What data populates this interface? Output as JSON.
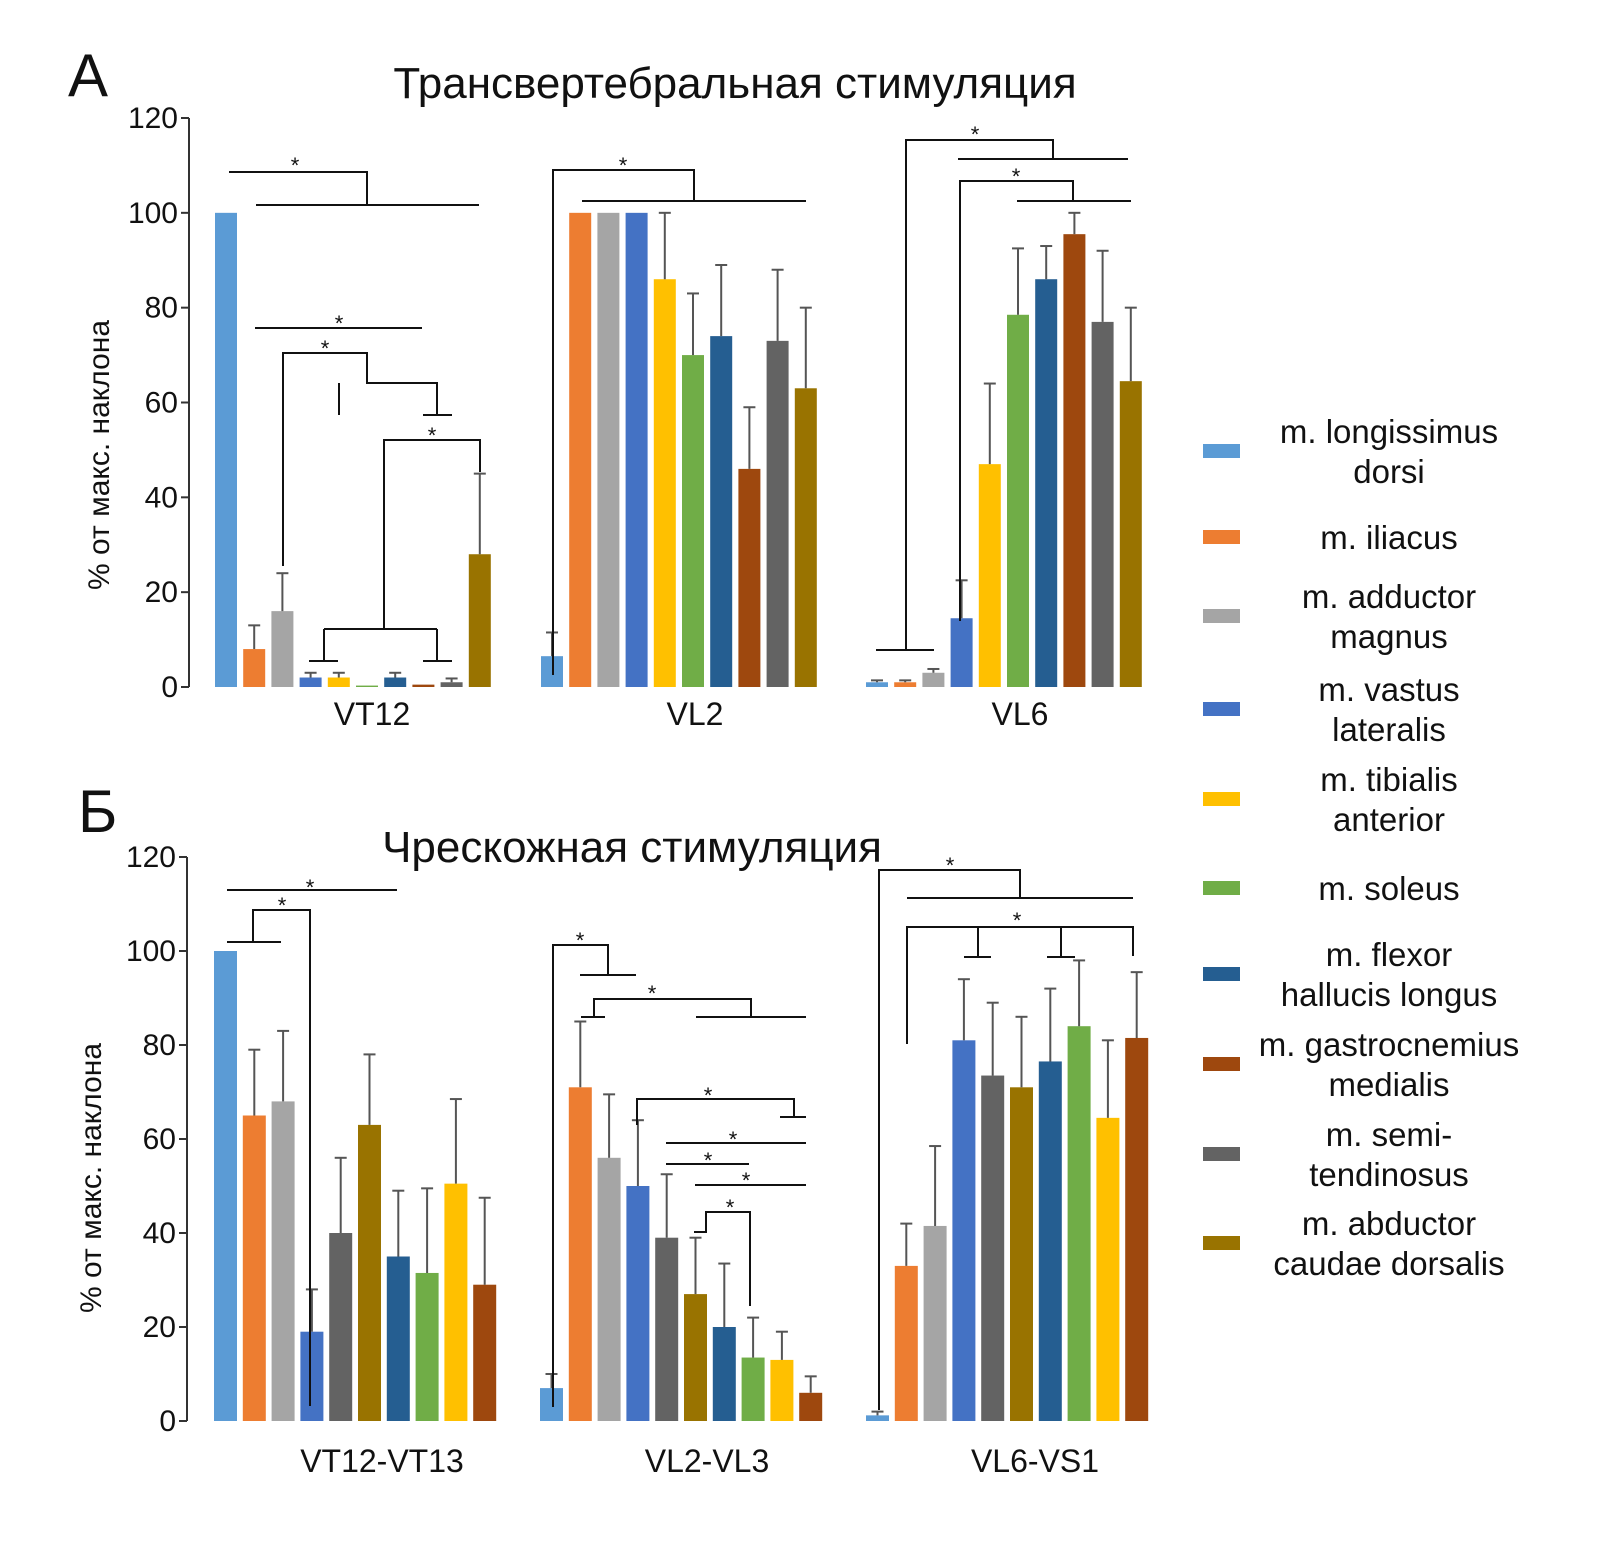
{
  "muscles": [
    {
      "label": [
        "m. longissimus",
        "dorsi"
      ],
      "color": "#5b9bd5"
    },
    {
      "label": [
        "m. iliacus"
      ],
      "color": "#ed7d31"
    },
    {
      "label": [
        "m. adductor",
        "magnus"
      ],
      "color": "#a5a5a5"
    },
    {
      "label": [
        "m. vastus",
        "lateralis"
      ],
      "color": "#4472c4"
    },
    {
      "label": [
        "m. tibialis",
        "anterior"
      ],
      "color": "#ffc000"
    },
    {
      "label": [
        "m. soleus"
      ],
      "color": "#70ad47"
    },
    {
      "label": [
        "m. flexor",
        "hallucis longus"
      ],
      "color": "#255e91"
    },
    {
      "label": [
        "m. gastrocnemius",
        "medialis"
      ],
      "color": "#9e480e"
    },
    {
      "label": [
        "m. semi-",
        "tendinosus"
      ],
      "color": "#636363"
    },
    {
      "label": [
        "m. abductor",
        "caudae dorsalis"
      ],
      "color": "#997300"
    }
  ],
  "chart_data": [
    {
      "type": "bar",
      "panel_label": "А",
      "title": "Трансвертебральная стимуляция",
      "ylabel": "% от макс. наклона",
      "ylim": [
        0,
        120
      ],
      "yticks": [
        0,
        20,
        40,
        60,
        80,
        100,
        120
      ],
      "significance_marker": "*",
      "groups": [
        {
          "name": "VT12",
          "bars": [
            {
              "muscle": "m. longissimus dorsi",
              "value": 100,
              "error": 0
            },
            {
              "muscle": "m. iliacus",
              "value": 8,
              "error": 5
            },
            {
              "muscle": "m. adductor magnus",
              "value": 16,
              "error": 8
            },
            {
              "muscle": "m. vastus lateralis",
              "value": 2,
              "error": 1
            },
            {
              "muscle": "m. tibialis anterior",
              "value": 2,
              "error": 1
            },
            {
              "muscle": "m. soleus",
              "value": 0.3,
              "error": 0
            },
            {
              "muscle": "m. flexor hallucis longus",
              "value": 2,
              "error": 1
            },
            {
              "muscle": "m. gastrocnemius medialis",
              "value": 0.5,
              "error": 0
            },
            {
              "muscle": "m. semitendinosus",
              "value": 1,
              "error": 0.8
            },
            {
              "muscle": "m. abductor caudae dorsalis",
              "value": 28,
              "error": 17
            }
          ]
        },
        {
          "name": "VL2",
          "bars": [
            {
              "muscle": "m. longissimus dorsi",
              "value": 6.5,
              "error": 5
            },
            {
              "muscle": "m. iliacus",
              "value": 100,
              "error": 0
            },
            {
              "muscle": "m. adductor magnus",
              "value": 100,
              "error": 0
            },
            {
              "muscle": "m. vastus lateralis",
              "value": 100,
              "error": 0
            },
            {
              "muscle": "m. tibialis anterior",
              "value": 86,
              "error": 14
            },
            {
              "muscle": "m. soleus",
              "value": 70,
              "error": 13
            },
            {
              "muscle": "m. flexor hallucis longus",
              "value": 74,
              "error": 15
            },
            {
              "muscle": "m. gastrocnemius medialis",
              "value": 46,
              "error": 13
            },
            {
              "muscle": "m. semitendinosus",
              "value": 73,
              "error": 15
            },
            {
              "muscle": "m. abductor caudae dorsalis",
              "value": 63,
              "error": 17
            }
          ]
        },
        {
          "name": "VL6",
          "bars": [
            {
              "muscle": "m. longissimus dorsi",
              "value": 1,
              "error": 0.4
            },
            {
              "muscle": "m. iliacus",
              "value": 1,
              "error": 0.4
            },
            {
              "muscle": "m. adductor magnus",
              "value": 3,
              "error": 0.8
            },
            {
              "muscle": "m. vastus lateralis",
              "value": 14.5,
              "error": 8
            },
            {
              "muscle": "m. tibialis anterior",
              "value": 47,
              "error": 17
            },
            {
              "muscle": "m. soleus",
              "value": 78.5,
              "error": 14
            },
            {
              "muscle": "m. flexor hallucis longus",
              "value": 86,
              "error": 7
            },
            {
              "muscle": "m. gastrocnemius medialis",
              "value": 95.5,
              "error": 4.5
            },
            {
              "muscle": "m. semitendinosus",
              "value": 77,
              "error": 15
            },
            {
              "muscle": "m. abductor caudae dorsalis",
              "value": 64.5,
              "error": 15.5
            }
          ]
        }
      ]
    },
    {
      "type": "bar",
      "panel_label": "Б",
      "title": "Чрескожная стимуляция",
      "ylabel": "% от макс. наклона",
      "ylim": [
        0,
        120
      ],
      "yticks": [
        0,
        20,
        40,
        60,
        80,
        100,
        120
      ],
      "significance_marker": "*",
      "groups": [
        {
          "name": "VT12-VT13",
          "bars": [
            {
              "muscle": "m. longissimus dorsi",
              "value": 100,
              "error": 0
            },
            {
              "muscle": "m. iliacus",
              "value": 65,
              "error": 14
            },
            {
              "muscle": "m. adductor magnus",
              "value": 68,
              "error": 15
            },
            {
              "muscle": "m. vastus lateralis",
              "value": 19,
              "error": 9
            },
            {
              "muscle": "m. semitendinosus",
              "value": 40,
              "error": 16
            },
            {
              "muscle": "m. abductor caudae dorsalis",
              "value": 63,
              "error": 15
            },
            {
              "muscle": "m. flexor hallucis longus",
              "value": 35,
              "error": 14
            },
            {
              "muscle": "m. soleus",
              "value": 31.5,
              "error": 18
            },
            {
              "muscle": "m. tibialis anterior",
              "value": 50.5,
              "error": 18
            },
            {
              "muscle": "m. gastrocnemius medialis",
              "value": 29,
              "error": 18.5
            }
          ]
        },
        {
          "name": "VL2-VL3",
          "bars": [
            {
              "muscle": "m. longissimus dorsi",
              "value": 7,
              "error": 3
            },
            {
              "muscle": "m. iliacus",
              "value": 71,
              "error": 14
            },
            {
              "muscle": "m. adductor magnus",
              "value": 56,
              "error": 13.5
            },
            {
              "muscle": "m. vastus lateralis",
              "value": 50,
              "error": 14
            },
            {
              "muscle": "m. semitendinosus",
              "value": 39,
              "error": 13.5
            },
            {
              "muscle": "m. abductor caudae dorsalis",
              "value": 27,
              "error": 12
            },
            {
              "muscle": "m. flexor hallucis longus",
              "value": 20,
              "error": 13.5
            },
            {
              "muscle": "m. soleus",
              "value": 13.5,
              "error": 8.5
            },
            {
              "muscle": "m. tibialis anterior",
              "value": 13,
              "error": 6
            },
            {
              "muscle": "m. gastrocnemius medialis",
              "value": 6,
              "error": 3.5
            }
          ]
        },
        {
          "name": "VL6-VS1",
          "bars": [
            {
              "muscle": "m. longissimus dorsi",
              "value": 1.2,
              "error": 0.8
            },
            {
              "muscle": "m. iliacus",
              "value": 33,
              "error": 9
            },
            {
              "muscle": "m. adductor magnus",
              "value": 41.5,
              "error": 17
            },
            {
              "muscle": "m. vastus lateralis",
              "value": 81,
              "error": 13
            },
            {
              "muscle": "m. semitendinosus",
              "value": 73.5,
              "error": 15.5
            },
            {
              "muscle": "m. abductor caudae dorsalis",
              "value": 71,
              "error": 15
            },
            {
              "muscle": "m. flexor hallucis longus",
              "value": 76.5,
              "error": 15.5
            },
            {
              "muscle": "m. soleus",
              "value": 84,
              "error": 14
            },
            {
              "muscle": "m. tibialis anterior",
              "value": 64.5,
              "error": 16.5
            },
            {
              "muscle": "m. gastrocnemius medialis",
              "value": 81.5,
              "error": 14
            }
          ]
        }
      ]
    }
  ]
}
